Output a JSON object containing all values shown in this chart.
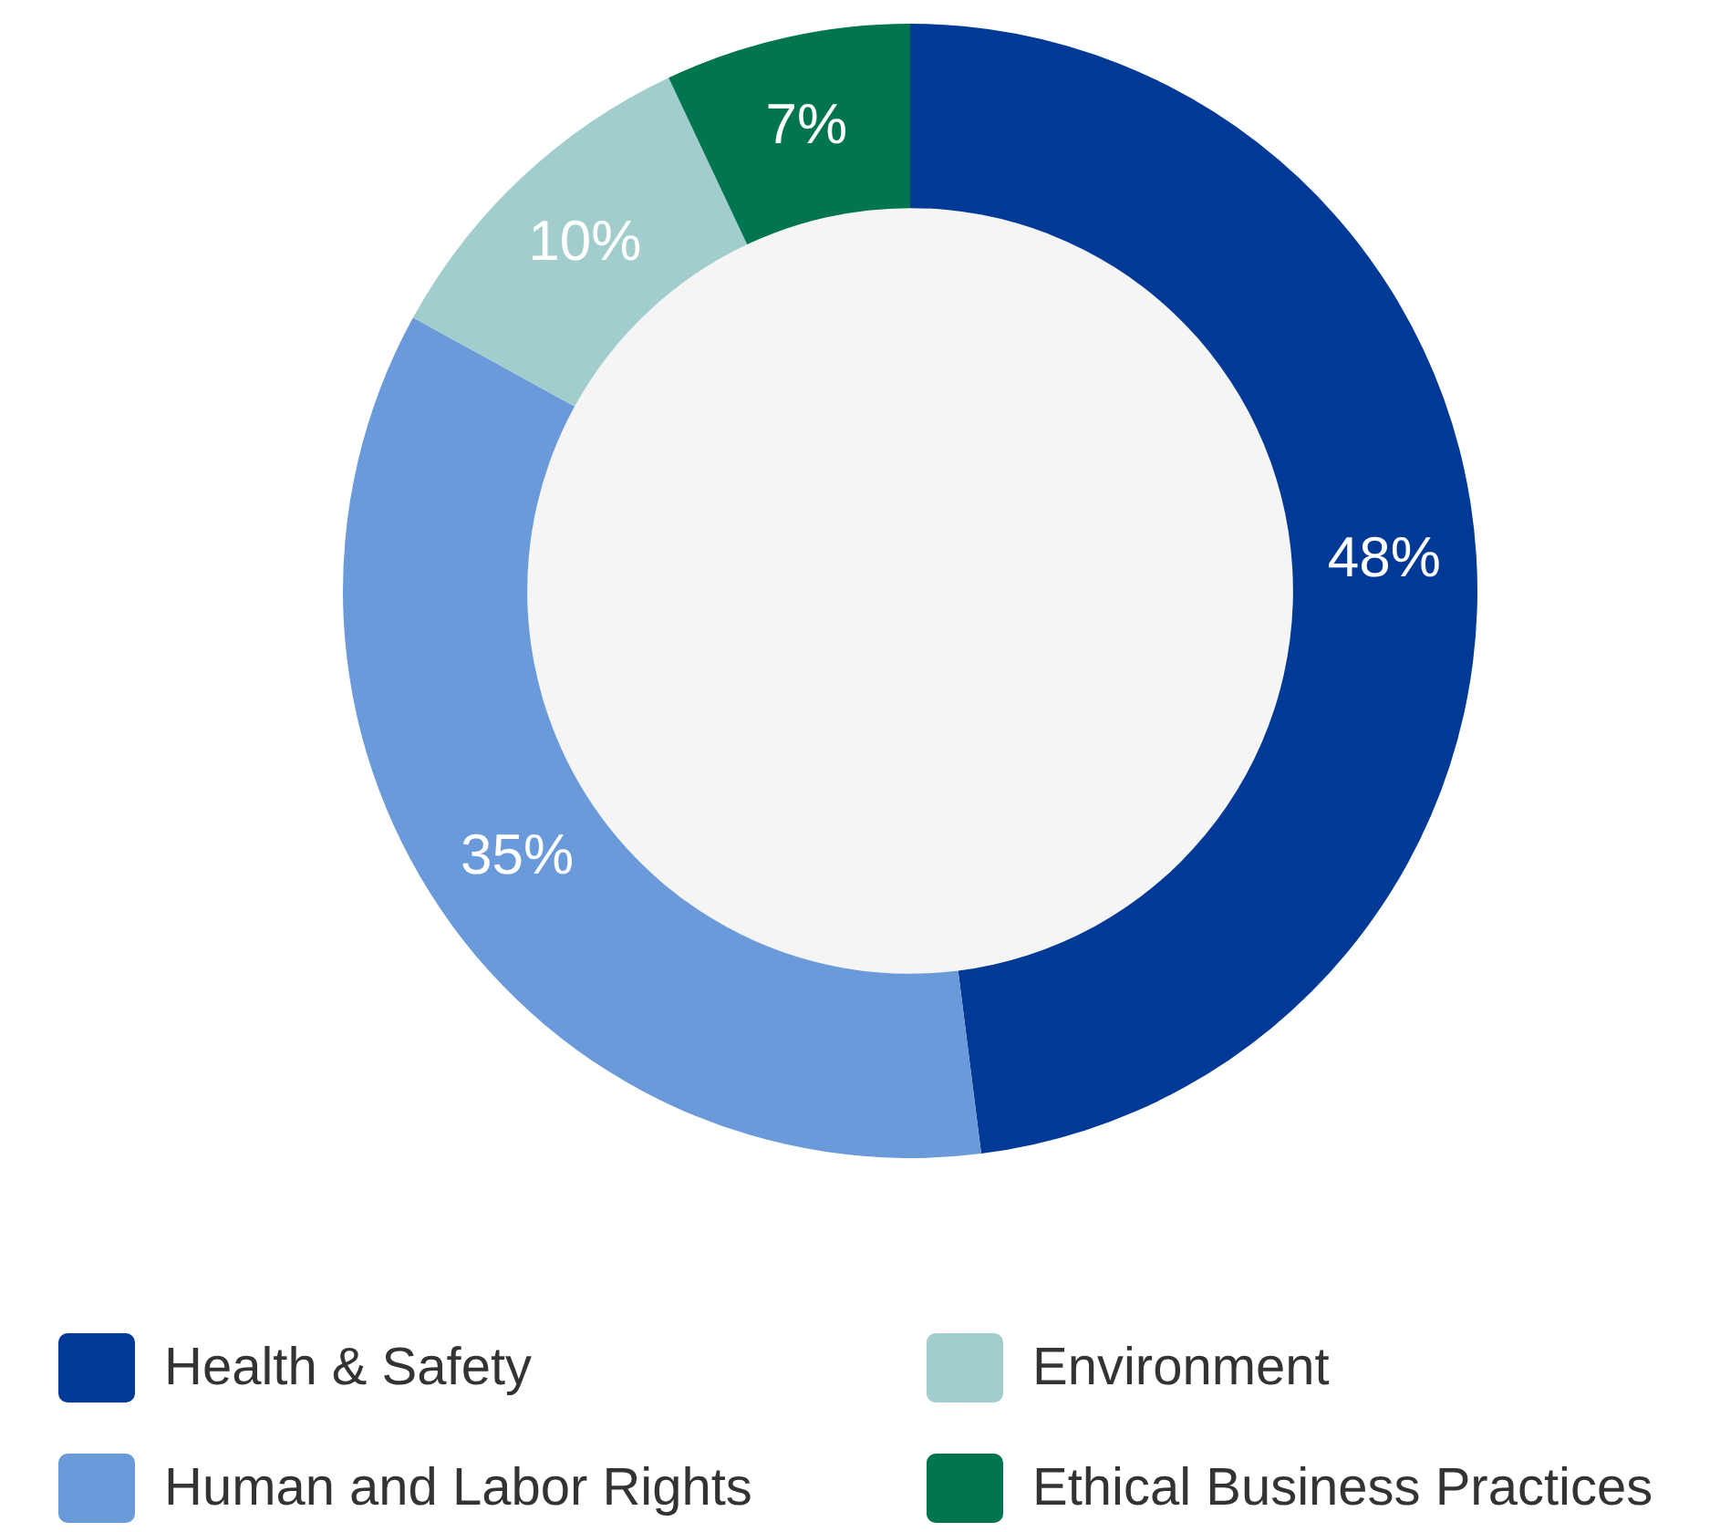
{
  "chart_data": {
    "type": "donut",
    "categories": [
      "Health & Safety",
      "Human and Labor Rights",
      "Environment",
      "Ethical Business Practices"
    ],
    "values": [
      48,
      35,
      10,
      7
    ],
    "colors": [
      "#003a96",
      "#6a9ad9",
      "#a1cdcd",
      "#007550"
    ],
    "value_labels": [
      "48%",
      "35%",
      "10%",
      "7%"
    ],
    "legend": "bottom"
  }
}
